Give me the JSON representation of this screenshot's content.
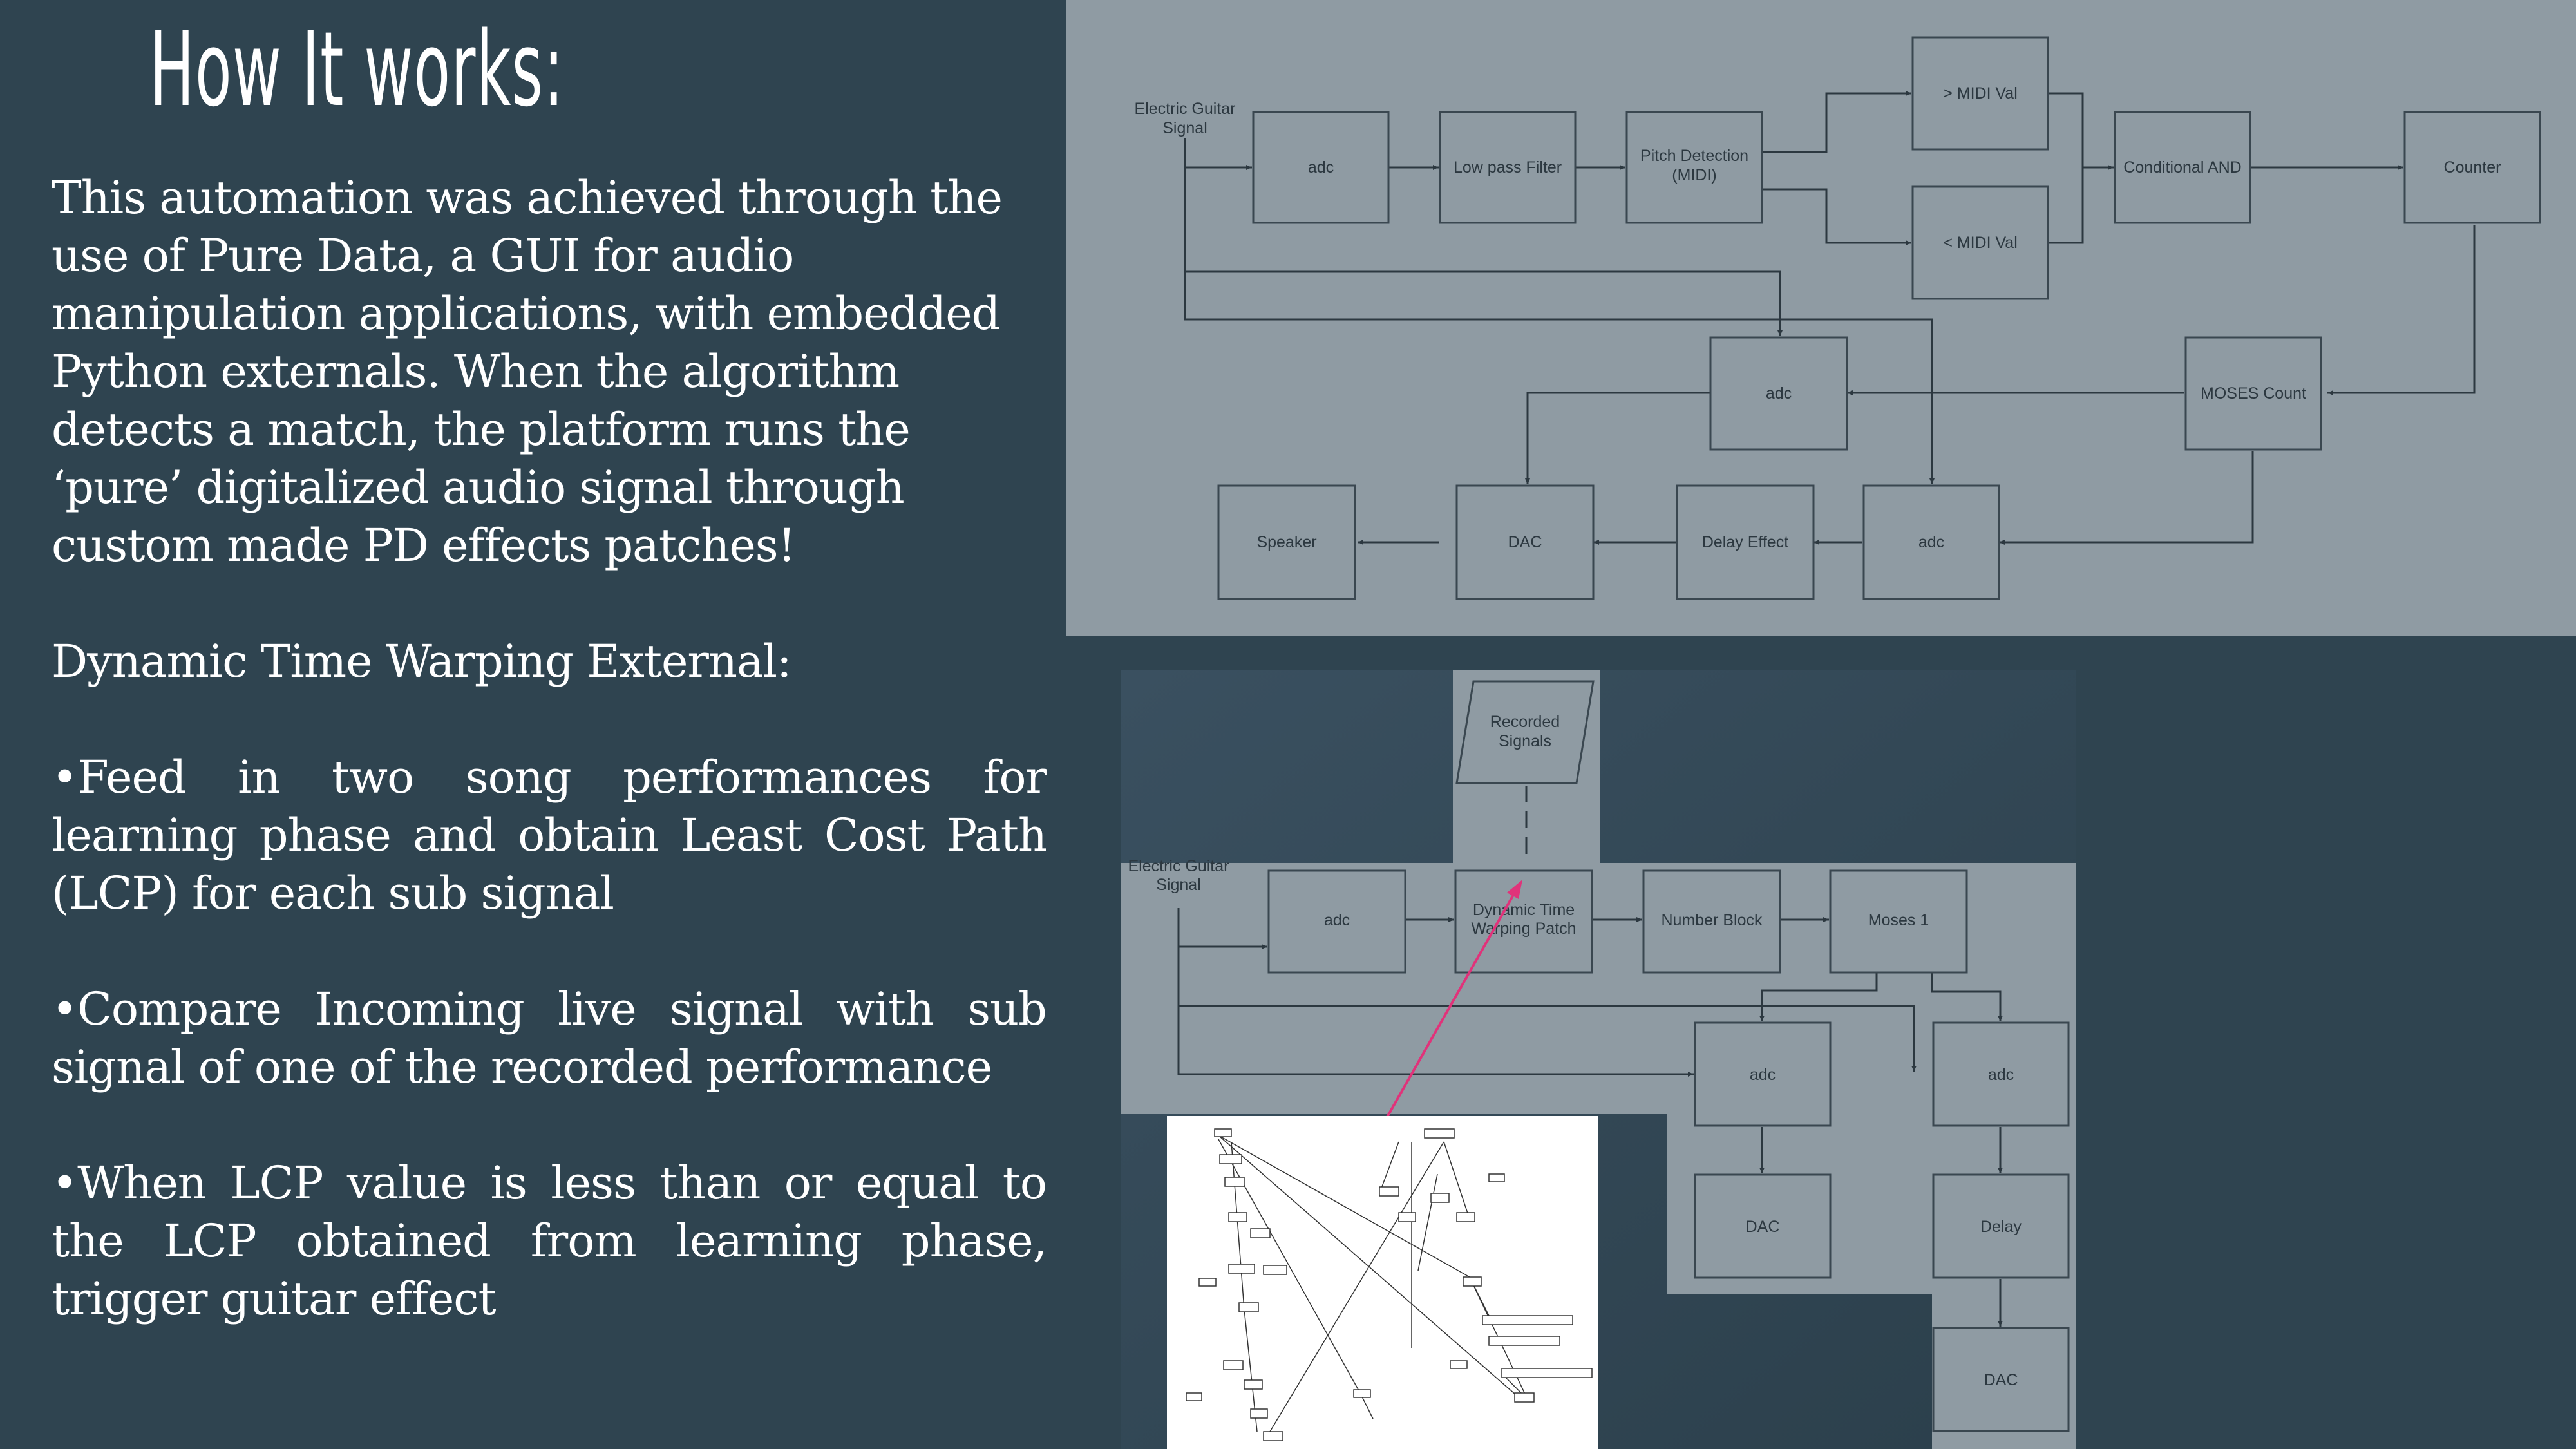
{
  "slide": {
    "title": "How It works:",
    "paragraphs": {
      "intro_1": "This automation was achieved through the",
      "intro_2": "use of Pure Data, a GUI for audio",
      "intro_3": "manipulation applications, with embedded",
      "intro_4": "Python externals. When the algorithm",
      "intro_5": "detects a match, the platform runs the",
      "intro_6": "‘pure’ digitalized audio signal through",
      "intro_7": "custom made PD effects patches!",
      "dtw_heading": "Dynamic Time Warping External:",
      "bullet_1": "•Feed in two song performances for learning phase and obtain Least Cost Path (LCP) for each sub signal",
      "bullet_2": "•Compare Incoming live signal with sub signal of one of the recorded performance",
      "bullet_3": "•When LCP value is less than or equal to the LCP obtained from learning phase, trigger guitar effect"
    }
  },
  "colors": {
    "background": "#2f4450",
    "diagram_panel": "#8f9ba3",
    "box_stroke": "#3a4750",
    "arrow_pink": "#e0337a"
  },
  "top_diagram": {
    "input_label_1": "Electric Guitar",
    "input_label_2": "Signal",
    "adc_1": "adc",
    "low_pass": "Low pass Filter",
    "pitch_1": "Pitch Detection",
    "pitch_2": "(MIDI)",
    "midi_gt": "> MIDI Val",
    "midi_lt": "< MIDI Val",
    "cond_and": "Conditional AND",
    "counter": "Counter",
    "adc_mid": "adc",
    "moses_count": "MOSES Count",
    "speaker": "Speaker",
    "dac": "DAC",
    "delay_effect": "Delay Effect",
    "adc_bottom": "adc"
  },
  "bottom_diagram": {
    "recorded_1": "Recorded",
    "recorded_2": "Signals",
    "input_label_1": "Electric Guitar",
    "input_label_2": "Signal",
    "adc_1": "adc",
    "dtw_1": "Dynamic Time",
    "dtw_2": "Warping Patch",
    "number_block": "Number Block",
    "moses_1": "Moses 1",
    "adc_left": "adc",
    "adc_right": "adc",
    "dac_left": "DAC",
    "delay": "Delay",
    "dac_right": "DAC"
  }
}
